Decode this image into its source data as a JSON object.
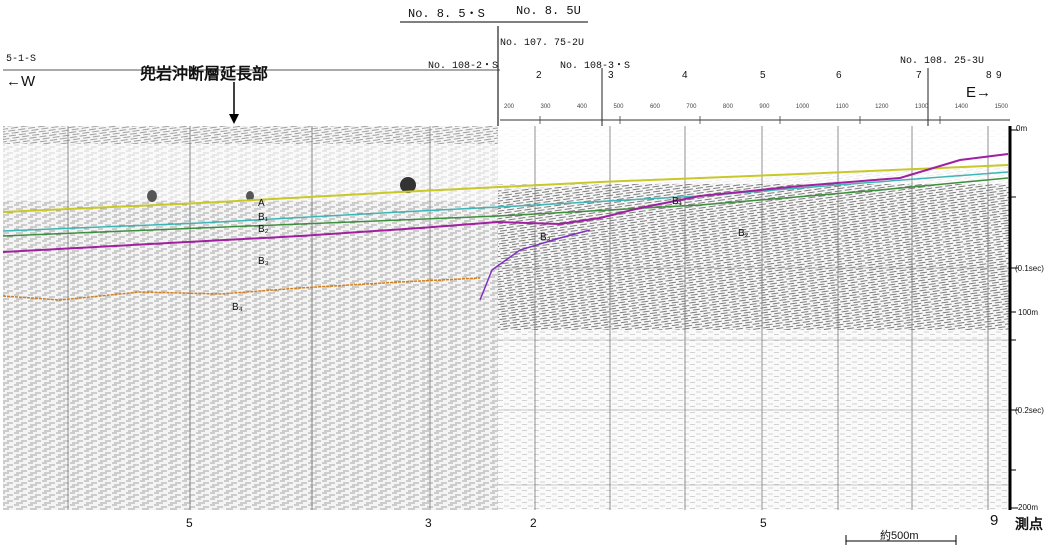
{
  "header": {
    "top_lines": [
      "No. 8. 5・S",
      "No. 8. 5U"
    ],
    "line_107": "No. 107. 75-2U",
    "line_5_1": "5-1-S",
    "line_108_2": "No. 108-2・S",
    "line_108_3": "No. 108-3・S",
    "line_108_25": "No. 108. 25-3U",
    "fault_label": "兜岩沖断層延長部",
    "west": "←W",
    "east": "E→"
  },
  "survey_ticks_top": [
    "2",
    "3",
    "4",
    "5",
    "6",
    "7",
    "8",
    "9"
  ],
  "scale_numbers": [
    "200",
    "300",
    "400",
    "500",
    "600",
    "700",
    "800",
    "900",
    "1000",
    "1100",
    "1200",
    "1300",
    "1400",
    "1500"
  ],
  "depth_axis": {
    "top": "0m",
    "sec1": "(0.1sec)",
    "m100": "100m",
    "sec2": "(0.2sec)",
    "m200": "200m"
  },
  "horizons": {
    "A": "A",
    "B1": "B₁",
    "B2": "B₂",
    "B3": "B₃",
    "B4": "B₄",
    "B1e": "B₁",
    "B2e": "B₂",
    "B3e": "B₃"
  },
  "bottom": {
    "pt_left_5": "5",
    "pt_left_3": "3",
    "pt_mid_2": "2",
    "pt_right_5": "5",
    "pt_right_9": "9",
    "measure_points": "測点",
    "scale_bar": "約500m"
  },
  "colors": {
    "horizon_A": "#c8c828",
    "horizon_B1": "#3fb5b5",
    "horizon_B2": "#3d8f3d",
    "horizon_B3": "#a020a0",
    "horizon_B4": "#d08020"
  }
}
